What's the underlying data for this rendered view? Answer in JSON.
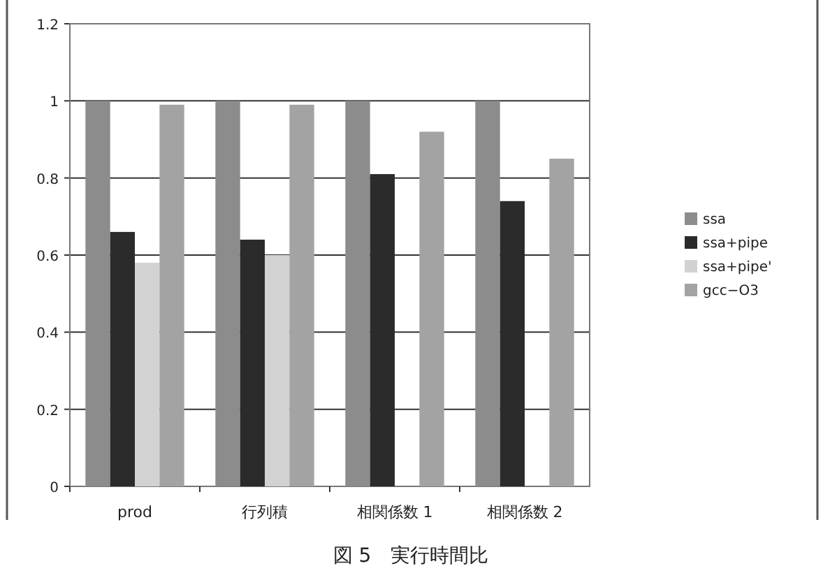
{
  "chart_data": {
    "type": "bar",
    "categories": [
      "prod",
      "行列積",
      "相関係数 1",
      "相関係数 2"
    ],
    "series": [
      {
        "name": "ssa",
        "color": "#8c8c8c",
        "values": [
          1,
          1,
          1,
          1
        ]
      },
      {
        "name": "ssa+pipe",
        "color": "#2b2b2b",
        "values": [
          0.66,
          0.64,
          0.81,
          0.74
        ]
      },
      {
        "name": "ssa+pipe'",
        "color": "#d2d2d2",
        "values": [
          0.58,
          0.6,
          null,
          null
        ]
      },
      {
        "name": "gcc−O3",
        "color": "#a3a3a3",
        "values": [
          0.99,
          0.99,
          0.92,
          0.85
        ]
      }
    ],
    "ylim": [
      0,
      1.2
    ],
    "yticks": [
      0,
      0.2,
      0.4,
      0.6,
      0.8,
      1,
      1.2
    ],
    "grid": "y",
    "legend": "right",
    "annotations": [
      "図 5　実行時間比"
    ]
  }
}
